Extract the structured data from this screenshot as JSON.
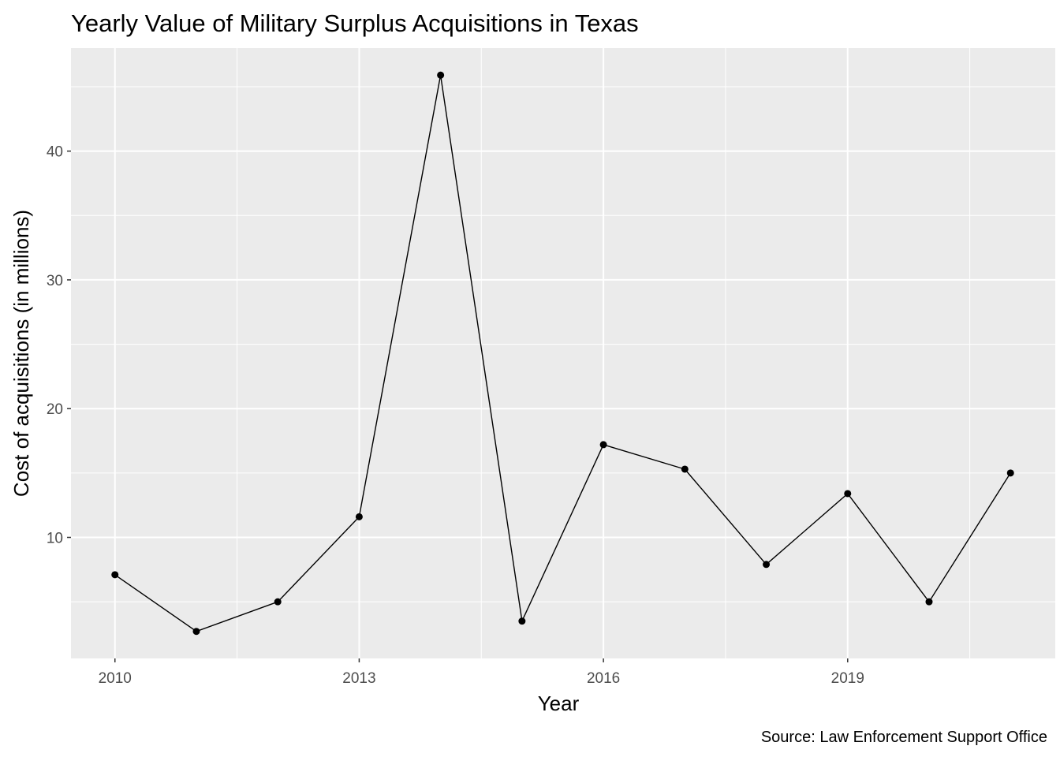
{
  "chart_data": {
    "type": "line",
    "title": "Yearly Value of Military Surplus Acquisitions in Texas",
    "xlabel": "Year",
    "ylabel": "Cost of acquisitions (in millions)",
    "caption": "Source: Law Enforcement Support Office",
    "x": [
      2010,
      2011,
      2012,
      2013,
      2014,
      2015,
      2016,
      2017,
      2018,
      2019,
      2020,
      2021
    ],
    "values": [
      7.1,
      2.7,
      5.0,
      11.6,
      45.9,
      3.5,
      17.2,
      15.3,
      7.9,
      13.4,
      5.0,
      15.0
    ],
    "x_ticks": [
      2010,
      2013,
      2016,
      2019
    ],
    "x_tick_labels": [
      "2010",
      "2013",
      "2016",
      "2019"
    ],
    "y_ticks": [
      10,
      20,
      30,
      40
    ],
    "y_tick_labels": [
      "10",
      "20",
      "30",
      "40"
    ],
    "xlim": [
      2009.46,
      2021.55
    ],
    "ylim": [
      0.6,
      48.0
    ],
    "grid": true,
    "colors": {
      "panel": "#ebebeb",
      "grid": "#ffffff",
      "line": "#000000",
      "point": "#000000"
    }
  }
}
